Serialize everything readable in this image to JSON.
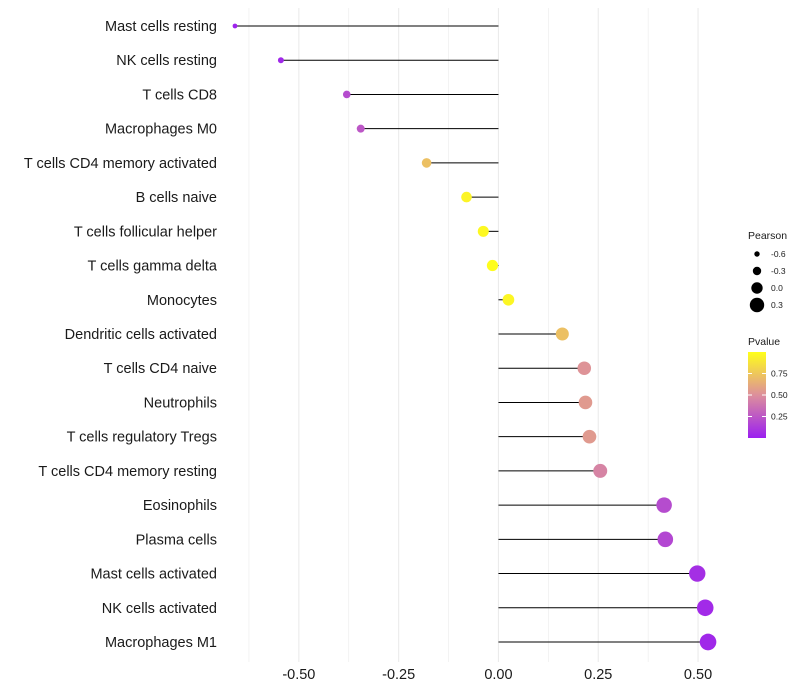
{
  "chart_data": {
    "type": "lollipop",
    "orientation": "horizontal",
    "categories": [
      "Mast cells resting",
      "NK cells resting",
      "T cells CD8",
      "Macrophages M0",
      "T cells CD4 memory activated",
      "B cells naive",
      "T cells follicular helper",
      "T cells gamma delta",
      "Monocytes",
      "Dendritic cells activated",
      "T cells CD4 naive",
      "Neutrophils",
      "T cells regulatory  Tregs",
      "T cells CD4 memory resting",
      "Eosinophils",
      "Plasma cells",
      "Mast cells activated",
      "NK cells activated",
      "Macrophages M1"
    ],
    "pearson": [
      -0.66,
      -0.545,
      -0.38,
      -0.345,
      -0.18,
      -0.08,
      -0.038,
      -0.015,
      0.025,
      0.16,
      0.215,
      0.218,
      0.228,
      0.255,
      0.415,
      0.418,
      0.498,
      0.518,
      0.525
    ],
    "pvalue": [
      0.02,
      0.04,
      0.2,
      0.25,
      0.72,
      0.95,
      0.97,
      0.99,
      0.96,
      0.72,
      0.52,
      0.55,
      0.55,
      0.45,
      0.2,
      0.18,
      0.07,
      0.05,
      0.04
    ],
    "xlim": [
      -0.68,
      0.56
    ],
    "x_ticks": [
      -0.5,
      -0.25,
      0.0,
      0.25,
      0.5
    ],
    "x_tick_labels": [
      "-0.50",
      "-0.25",
      "0.00",
      "0.25",
      "0.50"
    ],
    "xlabel": "",
    "ylabel": "",
    "grid": true,
    "legend_size": {
      "title": "Pearson",
      "values": [
        -0.6,
        -0.3,
        0.0,
        0.3
      ],
      "labels": [
        "-0.6",
        "-0.3",
        "0.0",
        "0.3"
      ]
    },
    "legend_color": {
      "title": "Pvalue",
      "range": [
        0.0,
        1.0
      ],
      "ticks": [
        0.25,
        0.5,
        0.75
      ],
      "tick_labels": [
        "0.25",
        "0.50",
        "0.75"
      ],
      "low_color": "#9b1ff0",
      "mid_color": "#dd8f9c",
      "high_color": "#ffff1a"
    },
    "stem_color": "#000000",
    "grid_color": "#ebebeb"
  }
}
